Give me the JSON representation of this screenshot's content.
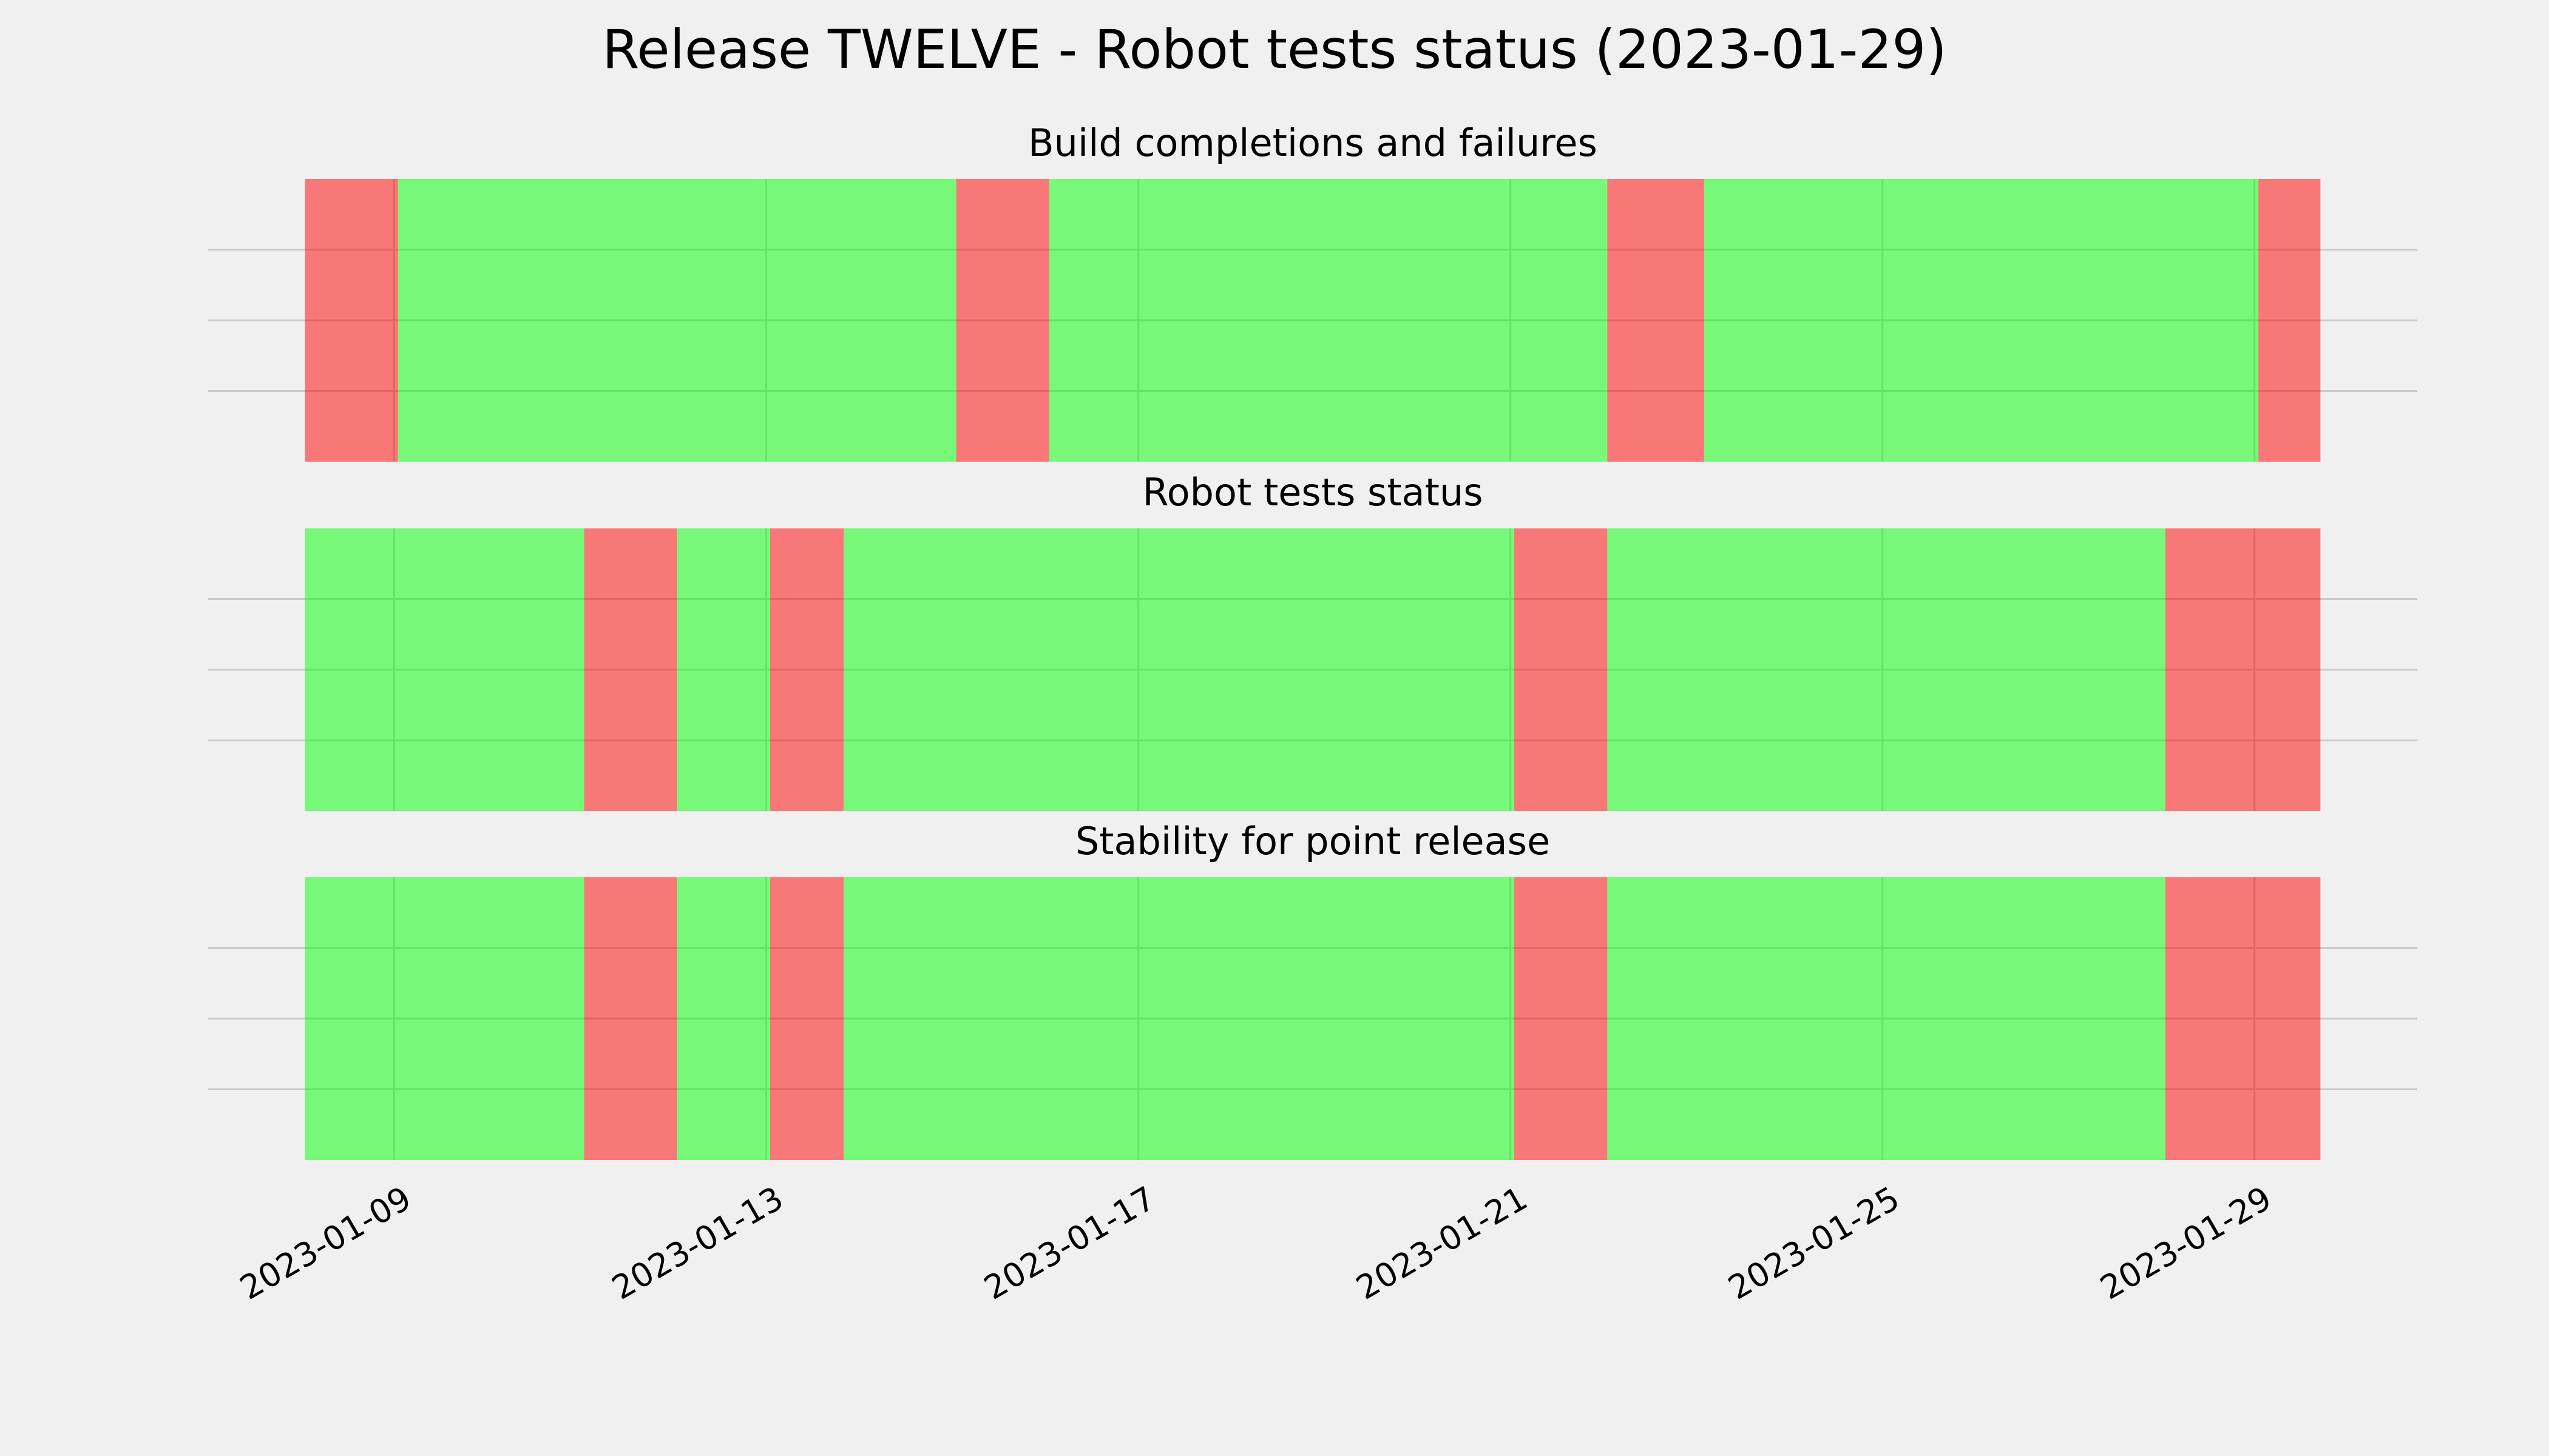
{
  "title": "Release TWELVE - Robot tests status (2023-01-29)",
  "chart_data": {
    "type": "timeline",
    "xlim": [
      "2023-01-07T00:00",
      "2023-01-30T18:00"
    ],
    "xticks": [
      "2023-01-09",
      "2023-01-13",
      "2023-01-17",
      "2023-01-21",
      "2023-01-25",
      "2023-01-29"
    ],
    "ylim": [
      0,
      1
    ],
    "yticks": [
      0.25,
      0.5,
      0.75
    ],
    "grid": true,
    "panels": [
      {
        "title": "Build completions and failures",
        "spans": [
          {
            "start": "2023-01-08T01:00",
            "end": "2023-01-09T01:00",
            "color": "#ff0000"
          },
          {
            "start": "2023-01-09T01:00",
            "end": "2023-01-15T01:00",
            "color": "#00ff00"
          },
          {
            "start": "2023-01-15T01:00",
            "end": "2023-01-16T01:00",
            "color": "#ff0000"
          },
          {
            "start": "2023-01-16T01:00",
            "end": "2023-01-22T01:00",
            "color": "#00ff00"
          },
          {
            "start": "2023-01-22T01:00",
            "end": "2023-01-23T02:00",
            "color": "#ff0000"
          },
          {
            "start": "2023-01-23T02:00",
            "end": "2023-01-29T01:00",
            "color": "#00ff00"
          },
          {
            "start": "2023-01-29T01:00",
            "end": "2023-01-29T17:00",
            "color": "#ff0000"
          }
        ]
      },
      {
        "title": "Robot tests status",
        "spans": [
          {
            "start": "2023-01-08T01:00",
            "end": "2023-01-11T01:00",
            "color": "#00ff00"
          },
          {
            "start": "2023-01-11T01:00",
            "end": "2023-01-12T01:00",
            "color": "#ff0000"
          },
          {
            "start": "2023-01-12T01:00",
            "end": "2023-01-13T01:00",
            "color": "#00ff00"
          },
          {
            "start": "2023-01-13T01:00",
            "end": "2023-01-13T20:00",
            "color": "#ff0000"
          },
          {
            "start": "2023-01-13T20:00",
            "end": "2023-01-21T01:00",
            "color": "#00ff00"
          },
          {
            "start": "2023-01-21T01:00",
            "end": "2023-01-22T01:00",
            "color": "#ff0000"
          },
          {
            "start": "2023-01-22T01:00",
            "end": "2023-01-28T01:00",
            "color": "#00ff00"
          },
          {
            "start": "2023-01-28T01:00",
            "end": "2023-01-29T17:00",
            "color": "#ff0000"
          }
        ]
      },
      {
        "title": "Stability for point release",
        "spans": [
          {
            "start": "2023-01-08T01:00",
            "end": "2023-01-11T01:00",
            "color": "#00ff00"
          },
          {
            "start": "2023-01-11T01:00",
            "end": "2023-01-12T01:00",
            "color": "#ff0000"
          },
          {
            "start": "2023-01-12T01:00",
            "end": "2023-01-13T01:00",
            "color": "#00ff00"
          },
          {
            "start": "2023-01-13T01:00",
            "end": "2023-01-13T20:00",
            "color": "#ff0000"
          },
          {
            "start": "2023-01-13T20:00",
            "end": "2023-01-21T01:00",
            "color": "#00ff00"
          },
          {
            "start": "2023-01-21T01:00",
            "end": "2023-01-22T01:00",
            "color": "#ff0000"
          },
          {
            "start": "2023-01-22T01:00",
            "end": "2023-01-28T01:00",
            "color": "#00ff00"
          },
          {
            "start": "2023-01-28T01:00",
            "end": "2023-01-29T17:00",
            "color": "#ff0000"
          }
        ]
      }
    ]
  }
}
